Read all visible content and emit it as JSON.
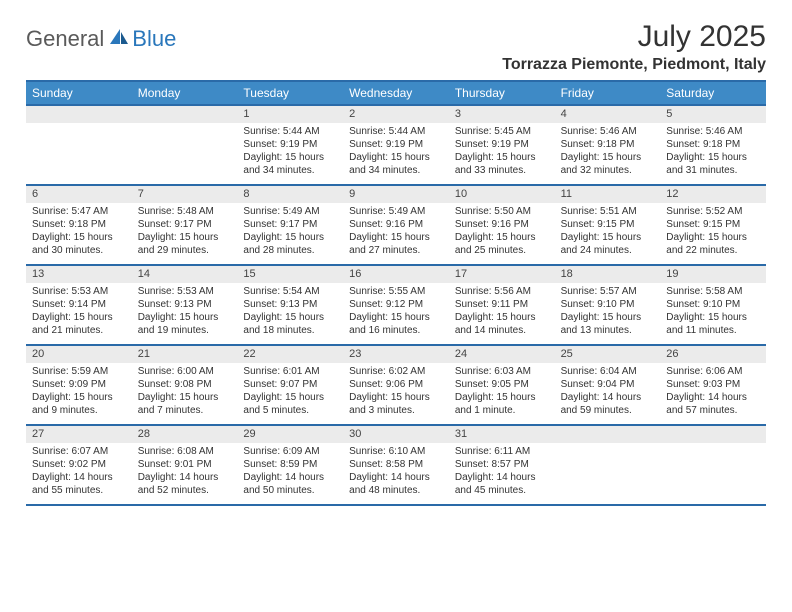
{
  "colors": {
    "header_bar_bg": "#3e8ac6",
    "header_bar_text": "#ffffff",
    "rule": "#2a6aa8",
    "daynum_bg": "#ebebeb",
    "page_bg": "#ffffff",
    "text": "#333333",
    "logo_general": "#5a5a5a",
    "logo_blue": "#2a77bb"
  },
  "fonts": {
    "title_size_pt": 22,
    "location_size_pt": 12,
    "dayname_size_pt": 9,
    "daynum_size_pt": 8,
    "body_size_pt": 7.5
  },
  "logo": {
    "general": "General",
    "blue": "Blue",
    "icon": "sail-icon"
  },
  "title": "July 2025",
  "location": "Torrazza Piemonte, Piedmont, Italy",
  "daynames": [
    "Sunday",
    "Monday",
    "Tuesday",
    "Wednesday",
    "Thursday",
    "Friday",
    "Saturday"
  ],
  "weeks": [
    [
      null,
      null,
      {
        "n": "1",
        "sunrise": "Sunrise: 5:44 AM",
        "sunset": "Sunset: 9:19 PM",
        "daylight": "Daylight: 15 hours and 34 minutes."
      },
      {
        "n": "2",
        "sunrise": "Sunrise: 5:44 AM",
        "sunset": "Sunset: 9:19 PM",
        "daylight": "Daylight: 15 hours and 34 minutes."
      },
      {
        "n": "3",
        "sunrise": "Sunrise: 5:45 AM",
        "sunset": "Sunset: 9:19 PM",
        "daylight": "Daylight: 15 hours and 33 minutes."
      },
      {
        "n": "4",
        "sunrise": "Sunrise: 5:46 AM",
        "sunset": "Sunset: 9:18 PM",
        "daylight": "Daylight: 15 hours and 32 minutes."
      },
      {
        "n": "5",
        "sunrise": "Sunrise: 5:46 AM",
        "sunset": "Sunset: 9:18 PM",
        "daylight": "Daylight: 15 hours and 31 minutes."
      }
    ],
    [
      {
        "n": "6",
        "sunrise": "Sunrise: 5:47 AM",
        "sunset": "Sunset: 9:18 PM",
        "daylight": "Daylight: 15 hours and 30 minutes."
      },
      {
        "n": "7",
        "sunrise": "Sunrise: 5:48 AM",
        "sunset": "Sunset: 9:17 PM",
        "daylight": "Daylight: 15 hours and 29 minutes."
      },
      {
        "n": "8",
        "sunrise": "Sunrise: 5:49 AM",
        "sunset": "Sunset: 9:17 PM",
        "daylight": "Daylight: 15 hours and 28 minutes."
      },
      {
        "n": "9",
        "sunrise": "Sunrise: 5:49 AM",
        "sunset": "Sunset: 9:16 PM",
        "daylight": "Daylight: 15 hours and 27 minutes."
      },
      {
        "n": "10",
        "sunrise": "Sunrise: 5:50 AM",
        "sunset": "Sunset: 9:16 PM",
        "daylight": "Daylight: 15 hours and 25 minutes."
      },
      {
        "n": "11",
        "sunrise": "Sunrise: 5:51 AM",
        "sunset": "Sunset: 9:15 PM",
        "daylight": "Daylight: 15 hours and 24 minutes."
      },
      {
        "n": "12",
        "sunrise": "Sunrise: 5:52 AM",
        "sunset": "Sunset: 9:15 PM",
        "daylight": "Daylight: 15 hours and 22 minutes."
      }
    ],
    [
      {
        "n": "13",
        "sunrise": "Sunrise: 5:53 AM",
        "sunset": "Sunset: 9:14 PM",
        "daylight": "Daylight: 15 hours and 21 minutes."
      },
      {
        "n": "14",
        "sunrise": "Sunrise: 5:53 AM",
        "sunset": "Sunset: 9:13 PM",
        "daylight": "Daylight: 15 hours and 19 minutes."
      },
      {
        "n": "15",
        "sunrise": "Sunrise: 5:54 AM",
        "sunset": "Sunset: 9:13 PM",
        "daylight": "Daylight: 15 hours and 18 minutes."
      },
      {
        "n": "16",
        "sunrise": "Sunrise: 5:55 AM",
        "sunset": "Sunset: 9:12 PM",
        "daylight": "Daylight: 15 hours and 16 minutes."
      },
      {
        "n": "17",
        "sunrise": "Sunrise: 5:56 AM",
        "sunset": "Sunset: 9:11 PM",
        "daylight": "Daylight: 15 hours and 14 minutes."
      },
      {
        "n": "18",
        "sunrise": "Sunrise: 5:57 AM",
        "sunset": "Sunset: 9:10 PM",
        "daylight": "Daylight: 15 hours and 13 minutes."
      },
      {
        "n": "19",
        "sunrise": "Sunrise: 5:58 AM",
        "sunset": "Sunset: 9:10 PM",
        "daylight": "Daylight: 15 hours and 11 minutes."
      }
    ],
    [
      {
        "n": "20",
        "sunrise": "Sunrise: 5:59 AM",
        "sunset": "Sunset: 9:09 PM",
        "daylight": "Daylight: 15 hours and 9 minutes."
      },
      {
        "n": "21",
        "sunrise": "Sunrise: 6:00 AM",
        "sunset": "Sunset: 9:08 PM",
        "daylight": "Daylight: 15 hours and 7 minutes."
      },
      {
        "n": "22",
        "sunrise": "Sunrise: 6:01 AM",
        "sunset": "Sunset: 9:07 PM",
        "daylight": "Daylight: 15 hours and 5 minutes."
      },
      {
        "n": "23",
        "sunrise": "Sunrise: 6:02 AM",
        "sunset": "Sunset: 9:06 PM",
        "daylight": "Daylight: 15 hours and 3 minutes."
      },
      {
        "n": "24",
        "sunrise": "Sunrise: 6:03 AM",
        "sunset": "Sunset: 9:05 PM",
        "daylight": "Daylight: 15 hours and 1 minute."
      },
      {
        "n": "25",
        "sunrise": "Sunrise: 6:04 AM",
        "sunset": "Sunset: 9:04 PM",
        "daylight": "Daylight: 14 hours and 59 minutes."
      },
      {
        "n": "26",
        "sunrise": "Sunrise: 6:06 AM",
        "sunset": "Sunset: 9:03 PM",
        "daylight": "Daylight: 14 hours and 57 minutes."
      }
    ],
    [
      {
        "n": "27",
        "sunrise": "Sunrise: 6:07 AM",
        "sunset": "Sunset: 9:02 PM",
        "daylight": "Daylight: 14 hours and 55 minutes."
      },
      {
        "n": "28",
        "sunrise": "Sunrise: 6:08 AM",
        "sunset": "Sunset: 9:01 PM",
        "daylight": "Daylight: 14 hours and 52 minutes."
      },
      {
        "n": "29",
        "sunrise": "Sunrise: 6:09 AM",
        "sunset": "Sunset: 8:59 PM",
        "daylight": "Daylight: 14 hours and 50 minutes."
      },
      {
        "n": "30",
        "sunrise": "Sunrise: 6:10 AM",
        "sunset": "Sunset: 8:58 PM",
        "daylight": "Daylight: 14 hours and 48 minutes."
      },
      {
        "n": "31",
        "sunrise": "Sunrise: 6:11 AM",
        "sunset": "Sunset: 8:57 PM",
        "daylight": "Daylight: 14 hours and 45 minutes."
      },
      null,
      null
    ]
  ]
}
